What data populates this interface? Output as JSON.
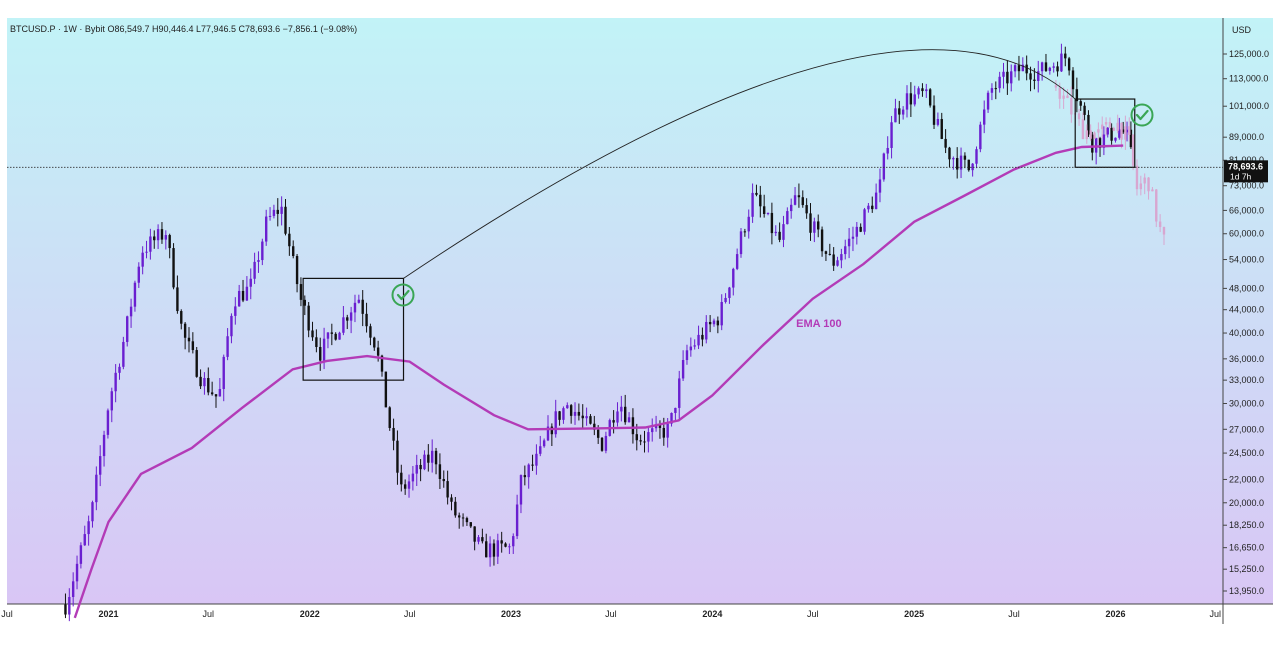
{
  "header": {
    "symbol": "BTCUSD.P",
    "interval": "1W",
    "exchange": "Bybit",
    "ohlc_text": "O86,549.7 H90,446.4 L77,946.5 C78,693.6 −7,856.1 (−9.08%)"
  },
  "axis": {
    "currency_label": "USD",
    "price_ticks": [
      "125,000.0",
      "113,000.0",
      "101,000.0",
      "89,000.0",
      "81,000.0",
      "73,000.0",
      "66,000.0",
      "60,000.0",
      "54,000.0",
      "48,000.0",
      "44,000.0",
      "40,000.0",
      "36,000.0",
      "33,000.0",
      "30,000.0",
      "27,000.0",
      "24,500.0",
      "22,000.0",
      "20,000.0",
      "18,250.0",
      "16,650.0",
      "15,250.0",
      "13,950.0"
    ],
    "time_ticks": [
      {
        "label": "Jul",
        "bold": false
      },
      {
        "label": "2021",
        "bold": true
      },
      {
        "label": "Jul",
        "bold": false
      },
      {
        "label": "2022",
        "bold": true
      },
      {
        "label": "Jul",
        "bold": false
      },
      {
        "label": "2023",
        "bold": true
      },
      {
        "label": "Jul",
        "bold": false
      },
      {
        "label": "2024",
        "bold": true
      },
      {
        "label": "Jul",
        "bold": false
      },
      {
        "label": "2025",
        "bold": true
      },
      {
        "label": "Jul",
        "bold": false
      },
      {
        "label": "2026",
        "bold": true
      },
      {
        "label": "Jul",
        "bold": false
      }
    ],
    "last_price_label": "78,693.6",
    "countdown_label": "1d 7h"
  },
  "annotations": {
    "ema_label": "EMA 100"
  },
  "colors": {
    "bg_top": "#c2f3f7",
    "bg_bottom": "#d9c6f5",
    "candle_up": "#6a1fd0",
    "candle_down": "#111111",
    "projection": "#d8a6d0",
    "ema": "#b33bb7",
    "check": "#3aa655",
    "box": "#111111"
  },
  "chart_data": {
    "type": "candlestick",
    "title": "BTCUSD.P · 1W · Bybit",
    "scale": "log",
    "ylim": [
      13500,
      128000
    ],
    "xlim": [
      "2020-07-01",
      "2026-07-15"
    ],
    "overlay_series": [
      {
        "name": "EMA 100",
        "points": [
          [
            "2020-11-01",
            12500
          ],
          [
            "2020-12-01",
            15250
          ],
          [
            "2021-01-01",
            18500
          ],
          [
            "2021-03-01",
            22500
          ],
          [
            "2021-06-01",
            25000
          ],
          [
            "2021-09-01",
            29500
          ],
          [
            "2021-12-01",
            34500
          ],
          [
            "2022-02-01",
            35700
          ],
          [
            "2022-04-15",
            36400
          ],
          [
            "2022-07-01",
            35600
          ],
          [
            "2022-09-01",
            32400
          ],
          [
            "2022-12-01",
            28600
          ],
          [
            "2023-02-01",
            27000
          ],
          [
            "2023-06-01",
            27100
          ],
          [
            "2023-09-01",
            27200
          ],
          [
            "2023-11-01",
            28000
          ],
          [
            "2024-01-01",
            31000
          ],
          [
            "2024-04-01",
            38000
          ],
          [
            "2024-07-01",
            46000
          ],
          [
            "2024-10-01",
            53000
          ],
          [
            "2025-01-01",
            63000
          ],
          [
            "2025-04-01",
            70000
          ],
          [
            "2025-07-01",
            78000
          ],
          [
            "2025-09-15",
            83500
          ],
          [
            "2025-11-01",
            85500
          ],
          [
            "2026-01-15",
            86000
          ]
        ]
      }
    ],
    "price_path": [
      [
        "2020-10-15",
        13200
      ],
      [
        "2020-12-01",
        19000
      ],
      [
        "2021-01-01",
        30000
      ],
      [
        "2021-02-01",
        40000
      ],
      [
        "2021-03-01",
        56000
      ],
      [
        "2021-04-15",
        60500
      ],
      [
        "2021-05-15",
        40000
      ],
      [
        "2021-06-20",
        33000
      ],
      [
        "2021-07-20",
        30500
      ],
      [
        "2021-08-15",
        46000
      ],
      [
        "2021-09-15",
        48000
      ],
      [
        "2021-10-15",
        63000
      ],
      [
        "2021-11-10",
        67000
      ],
      [
        "2021-12-15",
        46000
      ],
      [
        "2022-01-20",
        37000
      ],
      [
        "2022-03-01",
        42000
      ],
      [
        "2022-03-30",
        46500
      ],
      [
        "2022-05-01",
        38000
      ],
      [
        "2022-06-15",
        21000
      ],
      [
        "2022-07-20",
        23000
      ],
      [
        "2022-08-15",
        24500
      ],
      [
        "2022-09-15",
        19500
      ],
      [
        "2022-11-10",
        16500
      ],
      [
        "2022-12-31",
        16600
      ],
      [
        "2023-01-20",
        22000
      ],
      [
        "2023-02-20",
        24000
      ],
      [
        "2023-03-20",
        28000
      ],
      [
        "2023-04-15",
        30000
      ],
      [
        "2023-06-15",
        25500
      ],
      [
        "2023-07-15",
        30500
      ],
      [
        "2023-08-20",
        26000
      ],
      [
        "2023-10-15",
        27000
      ],
      [
        "2023-11-15",
        37000
      ],
      [
        "2024-01-15",
        43000
      ],
      [
        "2024-02-28",
        62000
      ],
      [
        "2024-03-15",
        70000
      ],
      [
        "2024-05-01",
        58000
      ],
      [
        "2024-06-01",
        70000
      ],
      [
        "2024-08-05",
        53000
      ],
      [
        "2024-09-15",
        60000
      ],
      [
        "2024-10-30",
        72000
      ],
      [
        "2024-11-20",
        96000
      ],
      [
        "2024-12-15",
        104000
      ],
      [
        "2025-01-20",
        106000
      ],
      [
        "2025-03-01",
        84000
      ],
      [
        "2025-04-10",
        78000
      ],
      [
        "2025-05-20",
        108000
      ],
      [
        "2025-07-15",
        118000
      ],
      [
        "2025-08-15",
        116000
      ],
      [
        "2025-10-06",
        124000
      ],
      [
        "2025-10-20",
        108000
      ],
      [
        "2025-11-20",
        87000
      ],
      [
        "2025-12-15",
        89000
      ],
      [
        "2026-01-10",
        92000
      ],
      [
        "2026-01-25",
        88000
      ],
      [
        "2026-02-01",
        78700
      ]
    ],
    "projection_path": [
      [
        "2025-09-15",
        110000
      ],
      [
        "2025-11-01",
        92000
      ],
      [
        "2025-12-01",
        90000
      ],
      [
        "2026-01-01",
        95000
      ],
      [
        "2026-01-25",
        88000
      ],
      [
        "2026-02-08",
        72000
      ],
      [
        "2026-03-01",
        75000
      ],
      [
        "2026-03-20",
        62000
      ],
      [
        "2026-04-05",
        56000
      ]
    ],
    "boxes": [
      {
        "x0": "2021-12-20",
        "x1": "2022-06-20",
        "y0": 33000,
        "y1": 50000
      },
      {
        "x0": "2025-10-20",
        "x1": "2026-02-05",
        "y0": 78700,
        "y1": 104000
      }
    ],
    "arc": {
      "from": [
        "2022-06-20",
        50000
      ],
      "to": [
        "2025-10-20",
        104000
      ],
      "peak": [
        "2024-07-15",
        119000
      ]
    }
  }
}
